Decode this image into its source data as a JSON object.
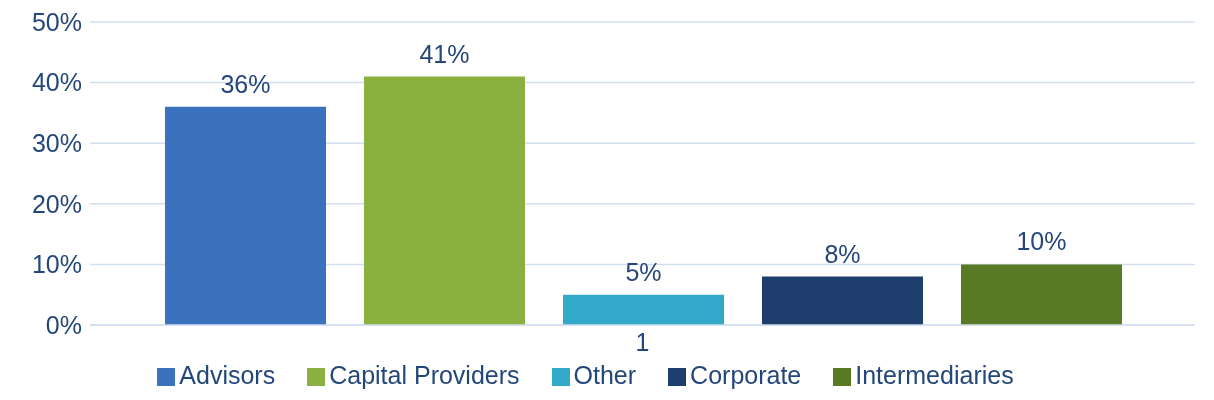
{
  "chart_data": {
    "type": "bar",
    "categories": [
      "1"
    ],
    "series": [
      {
        "name": "Advisors",
        "color": "#3a72bd",
        "values": [
          36
        ],
        "value_labels": [
          "36%"
        ]
      },
      {
        "name": "Capital Providers",
        "color": "#8ab03f",
        "values": [
          41
        ],
        "value_labels": [
          "41%"
        ]
      },
      {
        "name": "Other",
        "color": "#32a9c9",
        "values": [
          5
        ],
        "value_labels": [
          "5%"
        ]
      },
      {
        "name": "Corporate",
        "color": "#1e3f6d",
        "values": [
          8
        ],
        "value_labels": [
          "8%"
        ]
      },
      {
        "name": "Intermediaries",
        "color": "#587a24",
        "values": [
          10
        ],
        "value_labels": [
          "10%"
        ]
      }
    ],
    "ylim": [
      0,
      50
    ],
    "yticks": [
      {
        "value": 0,
        "label": "0%"
      },
      {
        "value": 10,
        "label": "10%"
      },
      {
        "value": 20,
        "label": "20%"
      },
      {
        "value": 30,
        "label": "30%"
      },
      {
        "value": 40,
        "label": "40%"
      },
      {
        "value": 50,
        "label": "50%"
      }
    ],
    "grid": "y",
    "legend": "bottom"
  }
}
